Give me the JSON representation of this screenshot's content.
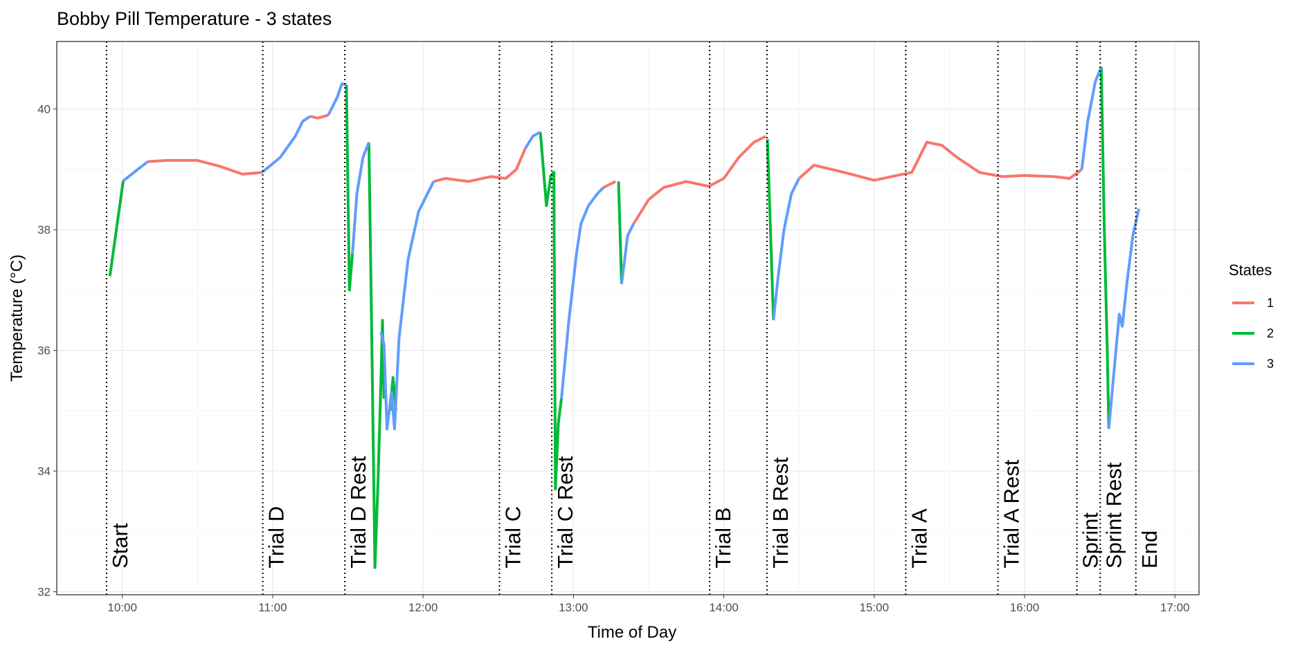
{
  "chart_data": {
    "type": "line",
    "title": "Bobby Pill Temperature - 3 states",
    "xlabel": "Time of Day",
    "ylabel": "Temperature (°C)",
    "legend_title": "States",
    "legend_position": "right",
    "grid": true,
    "xlim": [
      9.564,
      17.16
    ],
    "ylim": [
      31.95,
      41.12
    ],
    "xticks": [
      {
        "value": 10,
        "label": "10:00"
      },
      {
        "value": 11,
        "label": "11:00"
      },
      {
        "value": 12,
        "label": "12:00"
      },
      {
        "value": 13,
        "label": "13:00"
      },
      {
        "value": 14,
        "label": "14:00"
      },
      {
        "value": 15,
        "label": "15:00"
      },
      {
        "value": 16,
        "label": "16:00"
      },
      {
        "value": 17,
        "label": "17:00"
      }
    ],
    "yticks": [
      32,
      34,
      36,
      38,
      40
    ],
    "events": [
      {
        "label": "Start",
        "x": 9.895
      },
      {
        "label": "Trial D",
        "x": 10.934
      },
      {
        "label": "Trial D Rest",
        "x": 11.48
      },
      {
        "label": "Trial C",
        "x": 12.508
      },
      {
        "label": "Trial C Rest",
        "x": 12.856
      },
      {
        "label": "Trial B",
        "x": 13.906
      },
      {
        "label": "Trial B Rest",
        "x": 14.287
      },
      {
        "label": "Trial A",
        "x": 15.21
      },
      {
        "label": "Trial A Rest",
        "x": 15.823
      },
      {
        "label": "Sprint",
        "x": 16.348
      },
      {
        "label": "Sprint Rest",
        "x": 16.503
      },
      {
        "label": "End",
        "x": 16.74
      }
    ],
    "series": [
      {
        "name": "1",
        "color": "#F8766D",
        "x": [
          10.17,
          10.3,
          10.5,
          10.65,
          10.8,
          10.93,
          null,
          11.25,
          11.3,
          11.37,
          null,
          12.07,
          12.15,
          12.3,
          12.45,
          12.55,
          12.62,
          12.68,
          null,
          13.2,
          13.28,
          null,
          13.4,
          13.5,
          13.6,
          13.75,
          13.9,
          14.0,
          14.1,
          14.2,
          14.28,
          null,
          14.5,
          14.6,
          14.8,
          15.0,
          15.15,
          15.25,
          15.35,
          15.45,
          15.55,
          15.7,
          15.85,
          16.0,
          16.2,
          16.3,
          16.38
        ],
        "values": [
          39.13,
          39.15,
          39.15,
          39.05,
          38.92,
          38.95,
          null,
          39.88,
          39.85,
          39.9,
          null,
          38.8,
          38.85,
          38.8,
          38.88,
          38.85,
          39.0,
          39.35,
          null,
          38.7,
          38.8,
          null,
          38.1,
          38.5,
          38.7,
          38.8,
          38.72,
          38.85,
          39.2,
          39.45,
          39.55,
          null,
          38.85,
          39.07,
          38.95,
          38.82,
          38.9,
          38.95,
          39.45,
          39.4,
          39.2,
          38.95,
          38.88,
          38.9,
          38.88,
          38.85,
          39.0
        ]
      },
      {
        "name": "2",
        "color": "#00BA38",
        "x": [
          9.917,
          10.006,
          null,
          11.49,
          11.51,
          11.53,
          null,
          11.64,
          11.66,
          11.68,
          11.7,
          11.72,
          11.73,
          11.74,
          null,
          11.78,
          11.8,
          11.82,
          null,
          12.78,
          12.82,
          12.85,
          12.87,
          12.88,
          12.9,
          12.92,
          null,
          13.3,
          13.32,
          null,
          14.29,
          14.33,
          null,
          16.51,
          16.53,
          16.55,
          16.56
        ],
        "values": [
          37.23,
          38.81,
          null,
          40.4,
          37.0,
          37.6,
          null,
          39.45,
          36.0,
          32.4,
          33.8,
          35.5,
          36.5,
          35.2,
          null,
          35.0,
          35.55,
          35.0,
          null,
          39.62,
          38.4,
          38.9,
          38.95,
          33.7,
          34.8,
          35.2,
          null,
          38.8,
          37.1,
          null,
          39.5,
          36.5,
          null,
          40.7,
          38.0,
          36.0,
          34.7
        ]
      },
      {
        "name": "3",
        "color": "#619CFF",
        "x": [
          10.006,
          10.17,
          null,
          10.93,
          11.05,
          11.15,
          11.2,
          11.25,
          null,
          11.37,
          11.43,
          11.46,
          11.49,
          null,
          11.53,
          11.56,
          11.6,
          11.64,
          null,
          11.72,
          11.74,
          11.76,
          11.79,
          11.81,
          11.84,
          11.9,
          11.97,
          12.05,
          12.07,
          null,
          12.68,
          12.73,
          12.78,
          null,
          12.92,
          12.97,
          13.02,
          13.05,
          13.1,
          13.16,
          13.2,
          null,
          13.32,
          13.36,
          13.4,
          null,
          14.33,
          14.36,
          14.4,
          14.45,
          14.5,
          null,
          16.38,
          16.42,
          16.47,
          16.51,
          null,
          16.56,
          16.6,
          16.63,
          16.65,
          16.68,
          16.72,
          16.76
        ],
        "values": [
          38.81,
          39.13,
          null,
          38.95,
          39.2,
          39.55,
          39.8,
          39.88,
          null,
          39.9,
          40.2,
          40.42,
          40.4,
          null,
          37.6,
          38.6,
          39.2,
          39.45,
          null,
          36.3,
          36.1,
          34.7,
          35.3,
          34.7,
          36.2,
          37.5,
          38.3,
          38.7,
          38.8,
          null,
          39.35,
          39.55,
          39.62,
          null,
          35.2,
          36.5,
          37.6,
          38.1,
          38.4,
          38.6,
          38.7,
          null,
          37.1,
          37.9,
          38.1,
          null,
          36.5,
          37.2,
          38.0,
          38.6,
          38.85,
          null,
          39.0,
          39.8,
          40.45,
          40.7,
          null,
          34.7,
          35.8,
          36.6,
          36.4,
          37.1,
          37.9,
          38.35
        ]
      }
    ]
  }
}
